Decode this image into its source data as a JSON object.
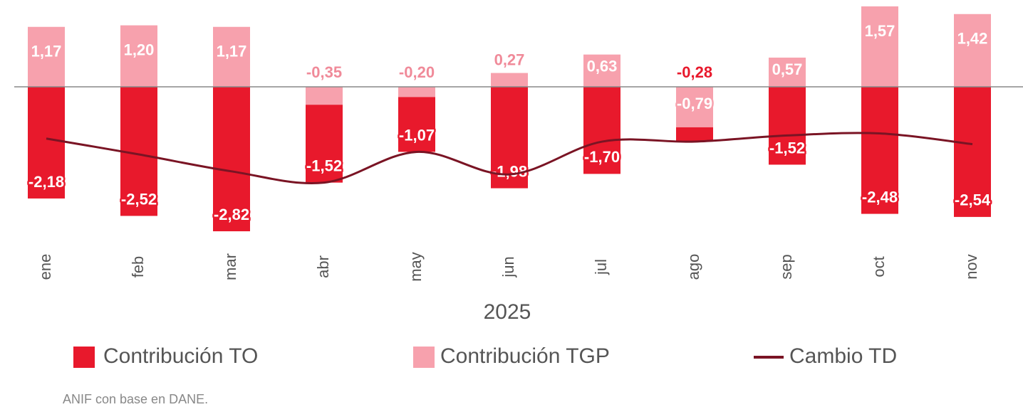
{
  "chart_data": {
    "type": "bar",
    "stacked": true,
    "xlabel": "2025",
    "categories": [
      "ene",
      "feb",
      "mar",
      "abr",
      "may",
      "jun",
      "jul",
      "ago",
      "sep",
      "oct",
      "nov"
    ],
    "series": [
      {
        "name": "Contribución TO",
        "color": "#e8192c",
        "values": [
          -2.18,
          -2.52,
          -2.82,
          -1.52,
          -1.07,
          -1.98,
          -1.7,
          -0.28,
          -1.52,
          -2.48,
          -2.54
        ],
        "value_labels": [
          "-2,18",
          "-2,52",
          "-2,82",
          "-1,52",
          "-1,07",
          "-1,98",
          "-1,70",
          "-0,28",
          "-1,52",
          "-2,48",
          "-2,54"
        ]
      },
      {
        "name": "Contribución TGP",
        "color": "#f7a1ad",
        "values": [
          1.17,
          1.2,
          1.17,
          -0.35,
          -0.2,
          0.27,
          0.63,
          -0.79,
          0.57,
          1.57,
          1.42
        ],
        "value_labels": [
          "1,17",
          "1,20",
          "1,17",
          "-0,35",
          "-0,20",
          "0,27",
          "0,63",
          "-0,79",
          "0,57",
          "1,57",
          "1,42"
        ]
      },
      {
        "name": "Cambio TD",
        "type": "line",
        "color": "#7a1424",
        "values": [
          -1.01,
          -1.32,
          -1.65,
          -1.87,
          -1.27,
          -1.71,
          -1.07,
          -1.07,
          -0.95,
          -0.91,
          -1.12
        ]
      }
    ]
  },
  "source": "ANIF con base en DANE."
}
